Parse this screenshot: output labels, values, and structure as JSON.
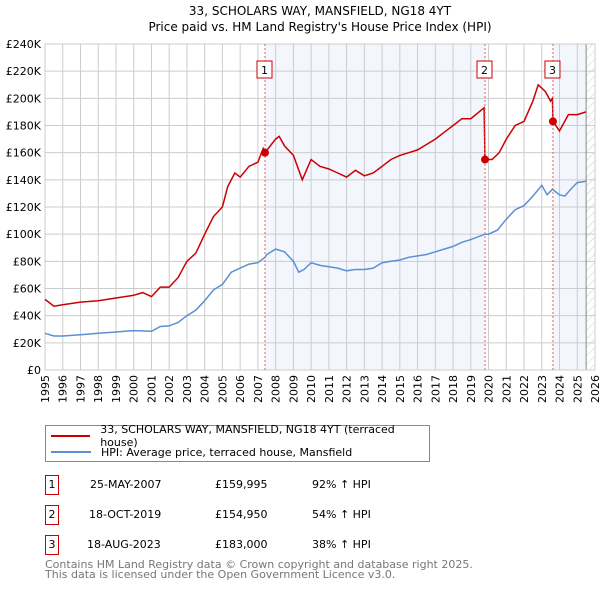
{
  "chart_data": {
    "type": "line",
    "title": "33, SCHOLARS WAY, MANSFIELD, NG18 4YT",
    "subtitle": "Price paid vs. HM Land Registry's House Price Index (HPI)",
    "xlim": [
      1995,
      2026
    ],
    "ylim": [
      0,
      240000
    ],
    "x_ticks": [
      "1995",
      "1996",
      "1997",
      "1998",
      "1999",
      "2000",
      "2001",
      "2002",
      "2003",
      "2004",
      "2005",
      "2006",
      "2007",
      "2008",
      "2009",
      "2010",
      "2011",
      "2012",
      "2013",
      "2014",
      "2015",
      "2016",
      "2017",
      "2018",
      "2019",
      "2020",
      "2021",
      "2022",
      "2023",
      "2024",
      "2025",
      "2026"
    ],
    "y_ticks": [
      "£0",
      "£20K",
      "£40K",
      "£60K",
      "£80K",
      "£100K",
      "£120K",
      "£140K",
      "£160K",
      "£180K",
      "£200K",
      "£220K",
      "£240K"
    ],
    "grid": true,
    "series": [
      {
        "name": "33, SCHOLARS WAY, MANSFIELD, NG18 4YT (terraced house)",
        "color": "#cc0000",
        "x": [
          1995,
          1995.5,
          1996,
          1997,
          1998,
          1999,
          2000,
          2000.5,
          2001,
          2001.5,
          2002,
          2002.5,
          2003,
          2003.5,
          2004,
          2004.5,
          2005,
          2005.3,
          2005.7,
          2006,
          2006.5,
          2007,
          2007.3,
          2007.4,
          2008,
          2008.2,
          2008.5,
          2009,
          2009.5,
          2010,
          2010.5,
          2011,
          2011.5,
          2012,
          2012.5,
          2013,
          2013.5,
          2014,
          2014.5,
          2015,
          2015.5,
          2016,
          2016.5,
          2017,
          2017.5,
          2018,
          2018.5,
          2019,
          2019.75,
          2019.8,
          2020.2,
          2020.6,
          2021,
          2021.5,
          2022,
          2022.5,
          2022.8,
          2023.2,
          2023.5,
          2023.6,
          2023.63,
          2024,
          2024.5,
          2025,
          2025.5
        ],
        "y": [
          52,
          47,
          48,
          50,
          51,
          53,
          55,
          57,
          54,
          61,
          61,
          68,
          80,
          86,
          100,
          113,
          120,
          135,
          145,
          142,
          150,
          153,
          163,
          160,
          170,
          172,
          165,
          158,
          140,
          155,
          150,
          148,
          145,
          142,
          147,
          143,
          145,
          150,
          155,
          158,
          160,
          162,
          166,
          170,
          175,
          180,
          185,
          185,
          193,
          155,
          155,
          160,
          170,
          180,
          183,
          198,
          210,
          205,
          198,
          200,
          183,
          176,
          188,
          188,
          190
        ]
      },
      {
        "name": "HPI: Average price, terraced house, Mansfield",
        "color": "#5b8fd4",
        "x": [
          1995,
          1995.5,
          1996,
          1997,
          1998,
          1999,
          2000,
          2001,
          2001.5,
          2002,
          2002.5,
          2003,
          2003.5,
          2004,
          2004.5,
          2005,
          2005.5,
          2006,
          2006.5,
          2007,
          2007.4,
          2007.5,
          2008,
          2008.5,
          2009,
          2009.3,
          2009.6,
          2010,
          2010.5,
          2011,
          2011.5,
          2012,
          2012.5,
          2013,
          2013.5,
          2014,
          2014.5,
          2015,
          2015.5,
          2016,
          2016.5,
          2017,
          2017.5,
          2018,
          2018.5,
          2019,
          2019.8,
          2020,
          2020.5,
          2021,
          2021.5,
          2022,
          2022.5,
          2023,
          2023.3,
          2023.6,
          2024,
          2024.3,
          2024.7,
          2025,
          2025.5
        ],
        "y": [
          27,
          25,
          25,
          26,
          27,
          28,
          29,
          28.5,
          32,
          32.5,
          35,
          40,
          44,
          51,
          59,
          63,
          72,
          75,
          78,
          79,
          83,
          85,
          89,
          87,
          80,
          72,
          74,
          79,
          77,
          76,
          75,
          73,
          74,
          74,
          75,
          79,
          80,
          81,
          83,
          84,
          85,
          87,
          89,
          91,
          94,
          96,
          100,
          100,
          103,
          111,
          118,
          121,
          128,
          136,
          129,
          133,
          129,
          128,
          134,
          138,
          139
        ]
      }
    ],
    "sales": [
      {
        "label": "1",
        "x": 2007.4,
        "price": 159995,
        "date": "25-MAY-2007",
        "price_text": "£159,995",
        "hpi": "92% ↑ HPI"
      },
      {
        "label": "2",
        "x": 2019.8,
        "price": 154950,
        "date": "18-OCT-2019",
        "price_text": "£154,950",
        "hpi": "54% ↑ HPI"
      },
      {
        "label": "3",
        "x": 2023.63,
        "price": 183000,
        "date": "18-AUG-2023",
        "price_text": "£183,000",
        "hpi": "38% ↑ HPI"
      }
    ],
    "data_end": 2025.5,
    "legend_placement": "below"
  },
  "footer": {
    "line1": "Contains HM Land Registry data © Crown copyright and database right 2025.",
    "line2": "This data is licensed under the Open Government Licence v3.0."
  }
}
